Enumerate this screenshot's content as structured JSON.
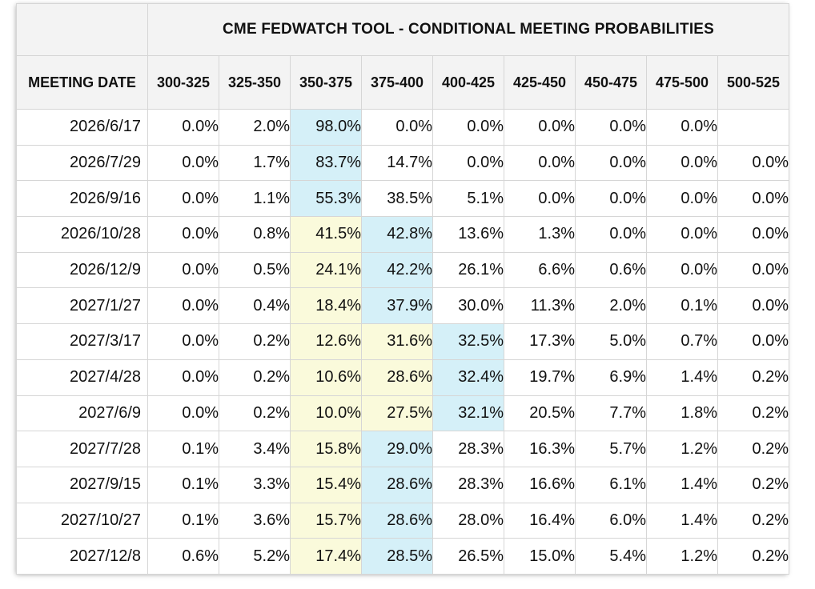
{
  "chart_data": {
    "type": "table",
    "title": "CME FEDWATCH TOOL - CONDITIONAL MEETING PROBABILITIES",
    "first_column_header": "MEETING DATE",
    "columns": [
      "300-325",
      "325-350",
      "350-375",
      "375-400",
      "400-425",
      "425-450",
      "450-475",
      "475-500",
      "500-525"
    ],
    "rows": [
      {
        "date": "2026/6/17",
        "values": [
          "0.0%",
          "2.0%",
          "98.0%",
          "0.0%",
          "0.0%",
          "0.0%",
          "0.0%",
          "0.0%",
          ""
        ],
        "highlight": [
          null,
          null,
          "blue",
          null,
          null,
          null,
          null,
          null,
          null
        ]
      },
      {
        "date": "2026/7/29",
        "values": [
          "0.0%",
          "1.7%",
          "83.7%",
          "14.7%",
          "0.0%",
          "0.0%",
          "0.0%",
          "0.0%",
          "0.0%"
        ],
        "highlight": [
          null,
          null,
          "blue",
          null,
          null,
          null,
          null,
          null,
          null
        ]
      },
      {
        "date": "2026/9/16",
        "values": [
          "0.0%",
          "1.1%",
          "55.3%",
          "38.5%",
          "5.1%",
          "0.0%",
          "0.0%",
          "0.0%",
          "0.0%"
        ],
        "highlight": [
          null,
          null,
          "blue",
          null,
          null,
          null,
          null,
          null,
          null
        ]
      },
      {
        "date": "2026/10/28",
        "values": [
          "0.0%",
          "0.8%",
          "41.5%",
          "42.8%",
          "13.6%",
          "1.3%",
          "0.0%",
          "0.0%",
          "0.0%"
        ],
        "highlight": [
          null,
          null,
          "yellow",
          "blue",
          null,
          null,
          null,
          null,
          null
        ]
      },
      {
        "date": "2026/12/9",
        "values": [
          "0.0%",
          "0.5%",
          "24.1%",
          "42.2%",
          "26.1%",
          "6.6%",
          "0.6%",
          "0.0%",
          "0.0%"
        ],
        "highlight": [
          null,
          null,
          "yellow",
          "blue",
          null,
          null,
          null,
          null,
          null
        ]
      },
      {
        "date": "2027/1/27",
        "values": [
          "0.0%",
          "0.4%",
          "18.4%",
          "37.9%",
          "30.0%",
          "11.3%",
          "2.0%",
          "0.1%",
          "0.0%"
        ],
        "highlight": [
          null,
          null,
          "yellow",
          "blue",
          null,
          null,
          null,
          null,
          null
        ]
      },
      {
        "date": "2027/3/17",
        "values": [
          "0.0%",
          "0.2%",
          "12.6%",
          "31.6%",
          "32.5%",
          "17.3%",
          "5.0%",
          "0.7%",
          "0.0%"
        ],
        "highlight": [
          null,
          null,
          "yellow",
          "yellow",
          "blue",
          null,
          null,
          null,
          null
        ]
      },
      {
        "date": "2027/4/28",
        "values": [
          "0.0%",
          "0.2%",
          "10.6%",
          "28.6%",
          "32.4%",
          "19.7%",
          "6.9%",
          "1.4%",
          "0.2%"
        ],
        "highlight": [
          null,
          null,
          "yellow",
          "yellow",
          "blue",
          null,
          null,
          null,
          null
        ]
      },
      {
        "date": "2027/6/9",
        "values": [
          "0.0%",
          "0.2%",
          "10.0%",
          "27.5%",
          "32.1%",
          "20.5%",
          "7.7%",
          "1.8%",
          "0.2%"
        ],
        "highlight": [
          null,
          null,
          "yellow",
          "yellow",
          "blue",
          null,
          null,
          null,
          null
        ]
      },
      {
        "date": "2027/7/28",
        "values": [
          "0.1%",
          "3.4%",
          "15.8%",
          "29.0%",
          "28.3%",
          "16.3%",
          "5.7%",
          "1.2%",
          "0.2%"
        ],
        "highlight": [
          null,
          null,
          "yellow",
          "blue",
          null,
          null,
          null,
          null,
          null
        ]
      },
      {
        "date": "2027/9/15",
        "values": [
          "0.1%",
          "3.3%",
          "15.4%",
          "28.6%",
          "28.3%",
          "16.6%",
          "6.1%",
          "1.4%",
          "0.2%"
        ],
        "highlight": [
          null,
          null,
          "yellow",
          "blue",
          null,
          null,
          null,
          null,
          null
        ]
      },
      {
        "date": "2027/10/27",
        "values": [
          "0.1%",
          "3.6%",
          "15.7%",
          "28.6%",
          "28.0%",
          "16.4%",
          "6.0%",
          "1.4%",
          "0.2%"
        ],
        "highlight": [
          null,
          null,
          "yellow",
          "blue",
          null,
          null,
          null,
          null,
          null
        ]
      },
      {
        "date": "2027/12/8",
        "values": [
          "0.6%",
          "5.2%",
          "17.4%",
          "28.5%",
          "26.5%",
          "15.0%",
          "5.4%",
          "1.2%",
          "0.2%"
        ],
        "highlight": [
          null,
          null,
          "yellow",
          "blue",
          null,
          null,
          null,
          null,
          null
        ]
      }
    ],
    "colors": {
      "blue": "#d5f0f8",
      "yellow": "#fafadb",
      "header_bg": "#f3f3f3",
      "border": "#d6d6d6"
    }
  }
}
